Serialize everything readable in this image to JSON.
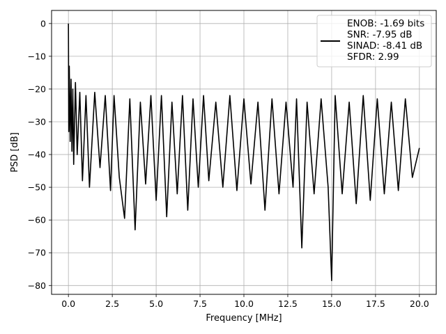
{
  "chart_data": {
    "type": "line",
    "title": "",
    "xlabel": "Frequency [MHz]",
    "ylabel": "PSD [dB]",
    "xlim": [
      -0.96,
      20.96
    ],
    "ylim": [
      -82.7,
      4.0
    ],
    "xticks": [
      0.0,
      2.5,
      5.0,
      7.5,
      10.0,
      12.5,
      15.0,
      17.5,
      20.0
    ],
    "xtick_labels": [
      "0.0",
      "2.5",
      "5.0",
      "7.5",
      "10.0",
      "12.5",
      "15.0",
      "17.5",
      "20.0"
    ],
    "yticks": [
      0,
      -10,
      -20,
      -30,
      -40,
      -50,
      -60,
      -70,
      -80
    ],
    "ytick_labels": [
      "0",
      "−10",
      "−20",
      "−30",
      "−40",
      "−50",
      "−60",
      "−70",
      "−80"
    ],
    "grid": true,
    "legend": {
      "placement": "top-right",
      "entries": [
        "ENOB: -1.69 bits",
        "SNR: -7.95 dB",
        "SINAD: -8.41 dB",
        "SFDR: 2.99"
      ]
    },
    "series": [
      {
        "color": "#000000",
        "x": [
          0.0,
          0.02,
          0.05,
          0.1,
          0.15,
          0.2,
          0.25,
          0.3,
          0.4,
          0.5,
          0.65,
          0.8,
          1.0,
          1.2,
          1.5,
          1.8,
          2.1,
          2.4,
          2.6,
          2.9,
          3.2,
          3.5,
          3.8,
          4.1,
          4.4,
          4.7,
          5.0,
          5.3,
          5.6,
          5.9,
          6.2,
          6.5,
          6.8,
          7.1,
          7.4,
          7.7,
          8.0,
          8.4,
          8.8,
          9.2,
          9.6,
          10.0,
          10.4,
          10.8,
          11.2,
          11.6,
          12.0,
          12.4,
          12.8,
          13.0,
          13.3,
          13.6,
          14.0,
          14.4,
          14.8,
          15.0,
          15.2,
          15.6,
          16.0,
          16.4,
          16.8,
          17.2,
          17.6,
          18.0,
          18.4,
          18.8,
          19.2,
          19.6,
          20.0
        ],
        "y": [
          0.0,
          -33.0,
          -13.0,
          -36.0,
          -17.0,
          -39.0,
          -20.0,
          -43.0,
          -18.0,
          -40.0,
          -21.0,
          -48.0,
          -22.0,
          -50.0,
          -21.0,
          -44.0,
          -22.0,
          -51.0,
          -22.0,
          -47.0,
          -59.5,
          -23.0,
          -63.0,
          -24.0,
          -49.0,
          -22.0,
          -54.0,
          -22.0,
          -59.0,
          -24.0,
          -52.0,
          -22.0,
          -57.0,
          -23.0,
          -50.0,
          -22.0,
          -48.0,
          -24.0,
          -50.0,
          -22.0,
          -51.0,
          -23.0,
          -49.0,
          -24.0,
          -57.0,
          -23.0,
          -52.0,
          -24.0,
          -50.0,
          -23.0,
          -68.5,
          -24.0,
          -52.0,
          -23.0,
          -50.0,
          -78.5,
          -22.0,
          -52.0,
          -24.0,
          -55.0,
          -22.0,
          -54.0,
          -23.0,
          -52.0,
          -24.0,
          -51.0,
          -23.0,
          -47.0,
          -38.0
        ]
      }
    ]
  }
}
